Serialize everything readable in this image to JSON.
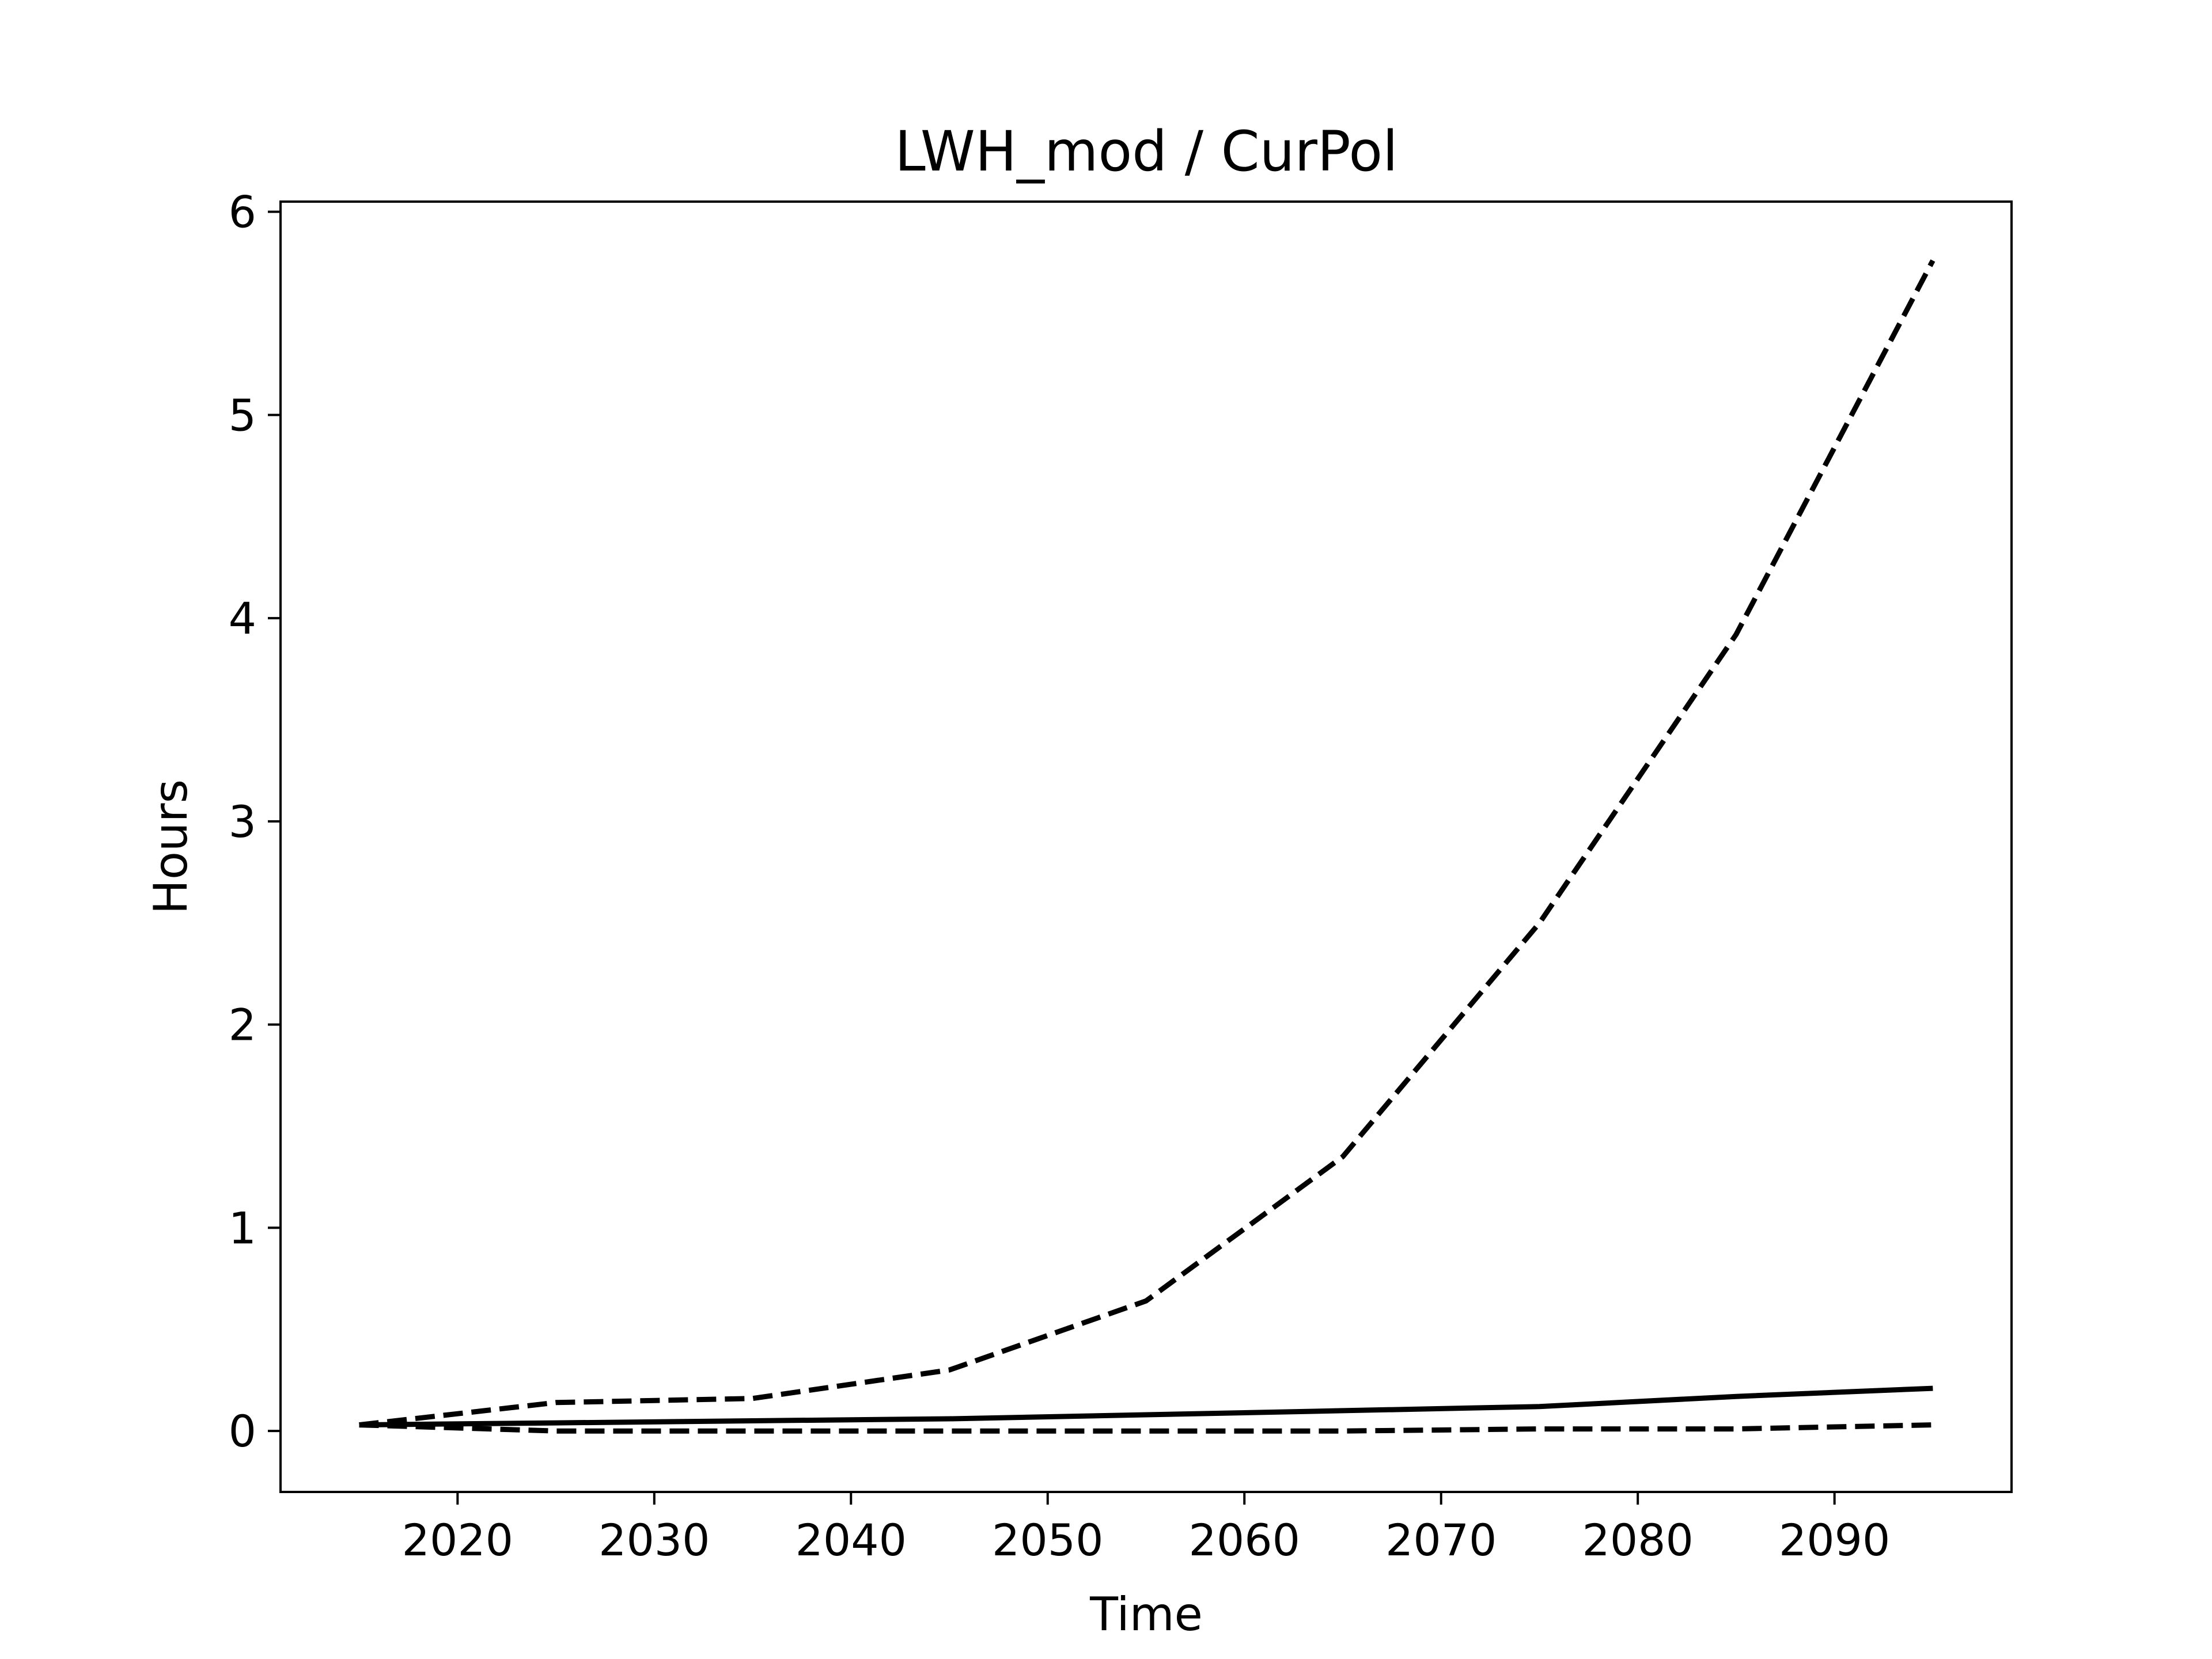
{
  "chart_data": {
    "type": "line",
    "title": "LWH_mod / CurPol",
    "xlabel": "Time",
    "ylabel": "Hours",
    "xlim": [
      2011,
      2099
    ],
    "ylim": [
      -0.3,
      6.05
    ],
    "xticks": [
      2020,
      2030,
      2040,
      2050,
      2060,
      2070,
      2080,
      2090
    ],
    "yticks": [
      0,
      1,
      2,
      3,
      4,
      5,
      6
    ],
    "grid": false,
    "legend": "none",
    "color": "#000000",
    "series": [
      {
        "style": "dashed",
        "x": [
          2015,
          2025,
          2035,
          2045,
          2055,
          2065,
          2075,
          2085,
          2095
        ],
        "values": [
          0.03,
          0.14,
          0.16,
          0.3,
          0.64,
          1.35,
          2.5,
          3.92,
          5.76
        ]
      },
      {
        "style": "solid",
        "x": [
          2015,
          2025,
          2035,
          2045,
          2055,
          2065,
          2075,
          2085,
          2095
        ],
        "values": [
          0.03,
          0.04,
          0.05,
          0.06,
          0.08,
          0.1,
          0.12,
          0.17,
          0.21
        ]
      },
      {
        "style": "dashed",
        "x": [
          2015,
          2025,
          2035,
          2045,
          2055,
          2065,
          2075,
          2085,
          2095
        ],
        "values": [
          0.03,
          0.0,
          0.0,
          0.0,
          0.0,
          0.0,
          0.01,
          0.01,
          0.03
        ]
      }
    ]
  }
}
